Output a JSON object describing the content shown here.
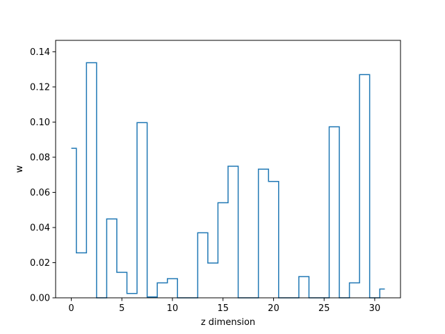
{
  "chart_data": {
    "type": "line",
    "style": "step",
    "xlabel": "z dimension",
    "ylabel": "w",
    "xlim": [
      -1.55,
      32.55
    ],
    "ylim": [
      0,
      0.1465
    ],
    "xticks": [
      0,
      5,
      10,
      15,
      20,
      25,
      30
    ],
    "xtick_labels": [
      "0",
      "5",
      "10",
      "15",
      "20",
      "25",
      "30"
    ],
    "yticks": [
      0.0,
      0.02,
      0.04,
      0.06,
      0.08,
      0.1,
      0.12,
      0.14
    ],
    "ytick_labels": [
      "0.00",
      "0.02",
      "0.04",
      "0.06",
      "0.08",
      "0.10",
      "0.12",
      "0.14"
    ],
    "grid": false,
    "line_color": "#1f77b4",
    "x": [
      0,
      1,
      2,
      3,
      4,
      5,
      6,
      7,
      8,
      9,
      10,
      11,
      12,
      13,
      14,
      15,
      16,
      17,
      18,
      19,
      20,
      21,
      22,
      23,
      24,
      25,
      26,
      27,
      28,
      29,
      30,
      31
    ],
    "values": [
      0.0851,
      0.0256,
      0.1338,
      0.0,
      0.0449,
      0.0145,
      0.0025,
      0.0997,
      0.0005,
      0.0085,
      0.0109,
      0.0,
      0.0,
      0.037,
      0.0198,
      0.0541,
      0.0749,
      0.0,
      0.0,
      0.0732,
      0.0662,
      0.0,
      0.0,
      0.0121,
      0.0,
      0.0,
      0.0973,
      0.0,
      0.0085,
      0.127,
      0.0,
      0.005
    ]
  }
}
